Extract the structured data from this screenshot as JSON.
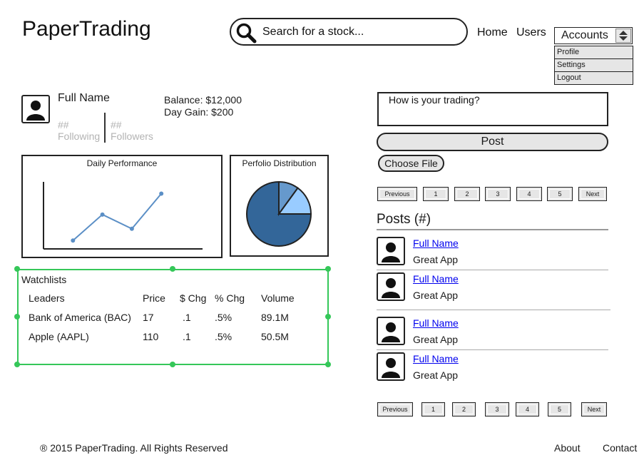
{
  "header": {
    "logo": "PaperTrading",
    "search_placeholder": "Search for a stock...",
    "nav": {
      "home": "Home",
      "users": "Users"
    },
    "accounts": {
      "label": "Accounts",
      "menu": [
        "Profile",
        "Settings",
        "Logout"
      ]
    }
  },
  "profile": {
    "name": "Full Name",
    "following_count": "##",
    "following_label": "Following",
    "followers_count": "##",
    "followers_label": "Followers",
    "balance": "Balance: $12,000",
    "day_gain": "Day Gain: $200"
  },
  "charts": {
    "performance_title": "Daily Performance",
    "distribution_title": "Perfolio Distribution"
  },
  "chart_data": [
    {
      "type": "line",
      "title": "Daily Performance",
      "x": [
        1,
        2,
        3,
        4
      ],
      "y": [
        1,
        4.1,
        2.4,
        6.6
      ],
      "ylim": [
        0,
        8
      ],
      "xlim": [
        0,
        5.4
      ],
      "grid": false,
      "color": "#5b8fc6"
    },
    {
      "type": "pie",
      "title": "Perfolio Distribution",
      "values": [
        75,
        10,
        15
      ],
      "colors": [
        "#336699",
        "#6699cc",
        "#99ccff"
      ],
      "start_deg": 90
    }
  ],
  "watchlist": {
    "title": "Watchlists",
    "columns": [
      "Leaders",
      "Price",
      "$ Chg",
      "% Chg",
      "Volume"
    ],
    "rows": [
      [
        "Bank of America (BAC)",
        "17",
        ".1",
        ".5%",
        "89.1M"
      ],
      [
        "Apple (AAPL)",
        "110",
        ".1",
        ".5%",
        "50.5M"
      ]
    ]
  },
  "feed": {
    "compose_placeholder": "How is your trading?",
    "post_label": "Post",
    "choose_file_label": "Choose File",
    "pagination": [
      "Previous",
      "1",
      "2",
      "3",
      "4",
      "5",
      "Next"
    ],
    "posts_heading": "Posts (#)",
    "posts": [
      {
        "author": "Full Name",
        "text": "Great App"
      },
      {
        "author": "Full Name",
        "text": "Great App"
      },
      {
        "author": "Full Name",
        "text": "Great App"
      },
      {
        "author": "Full Name",
        "text": "Great App"
      }
    ]
  },
  "footer": {
    "copyright": "® 2015 PaperTrading. All Rights Reserved",
    "about": "About",
    "contact": "Contact"
  }
}
